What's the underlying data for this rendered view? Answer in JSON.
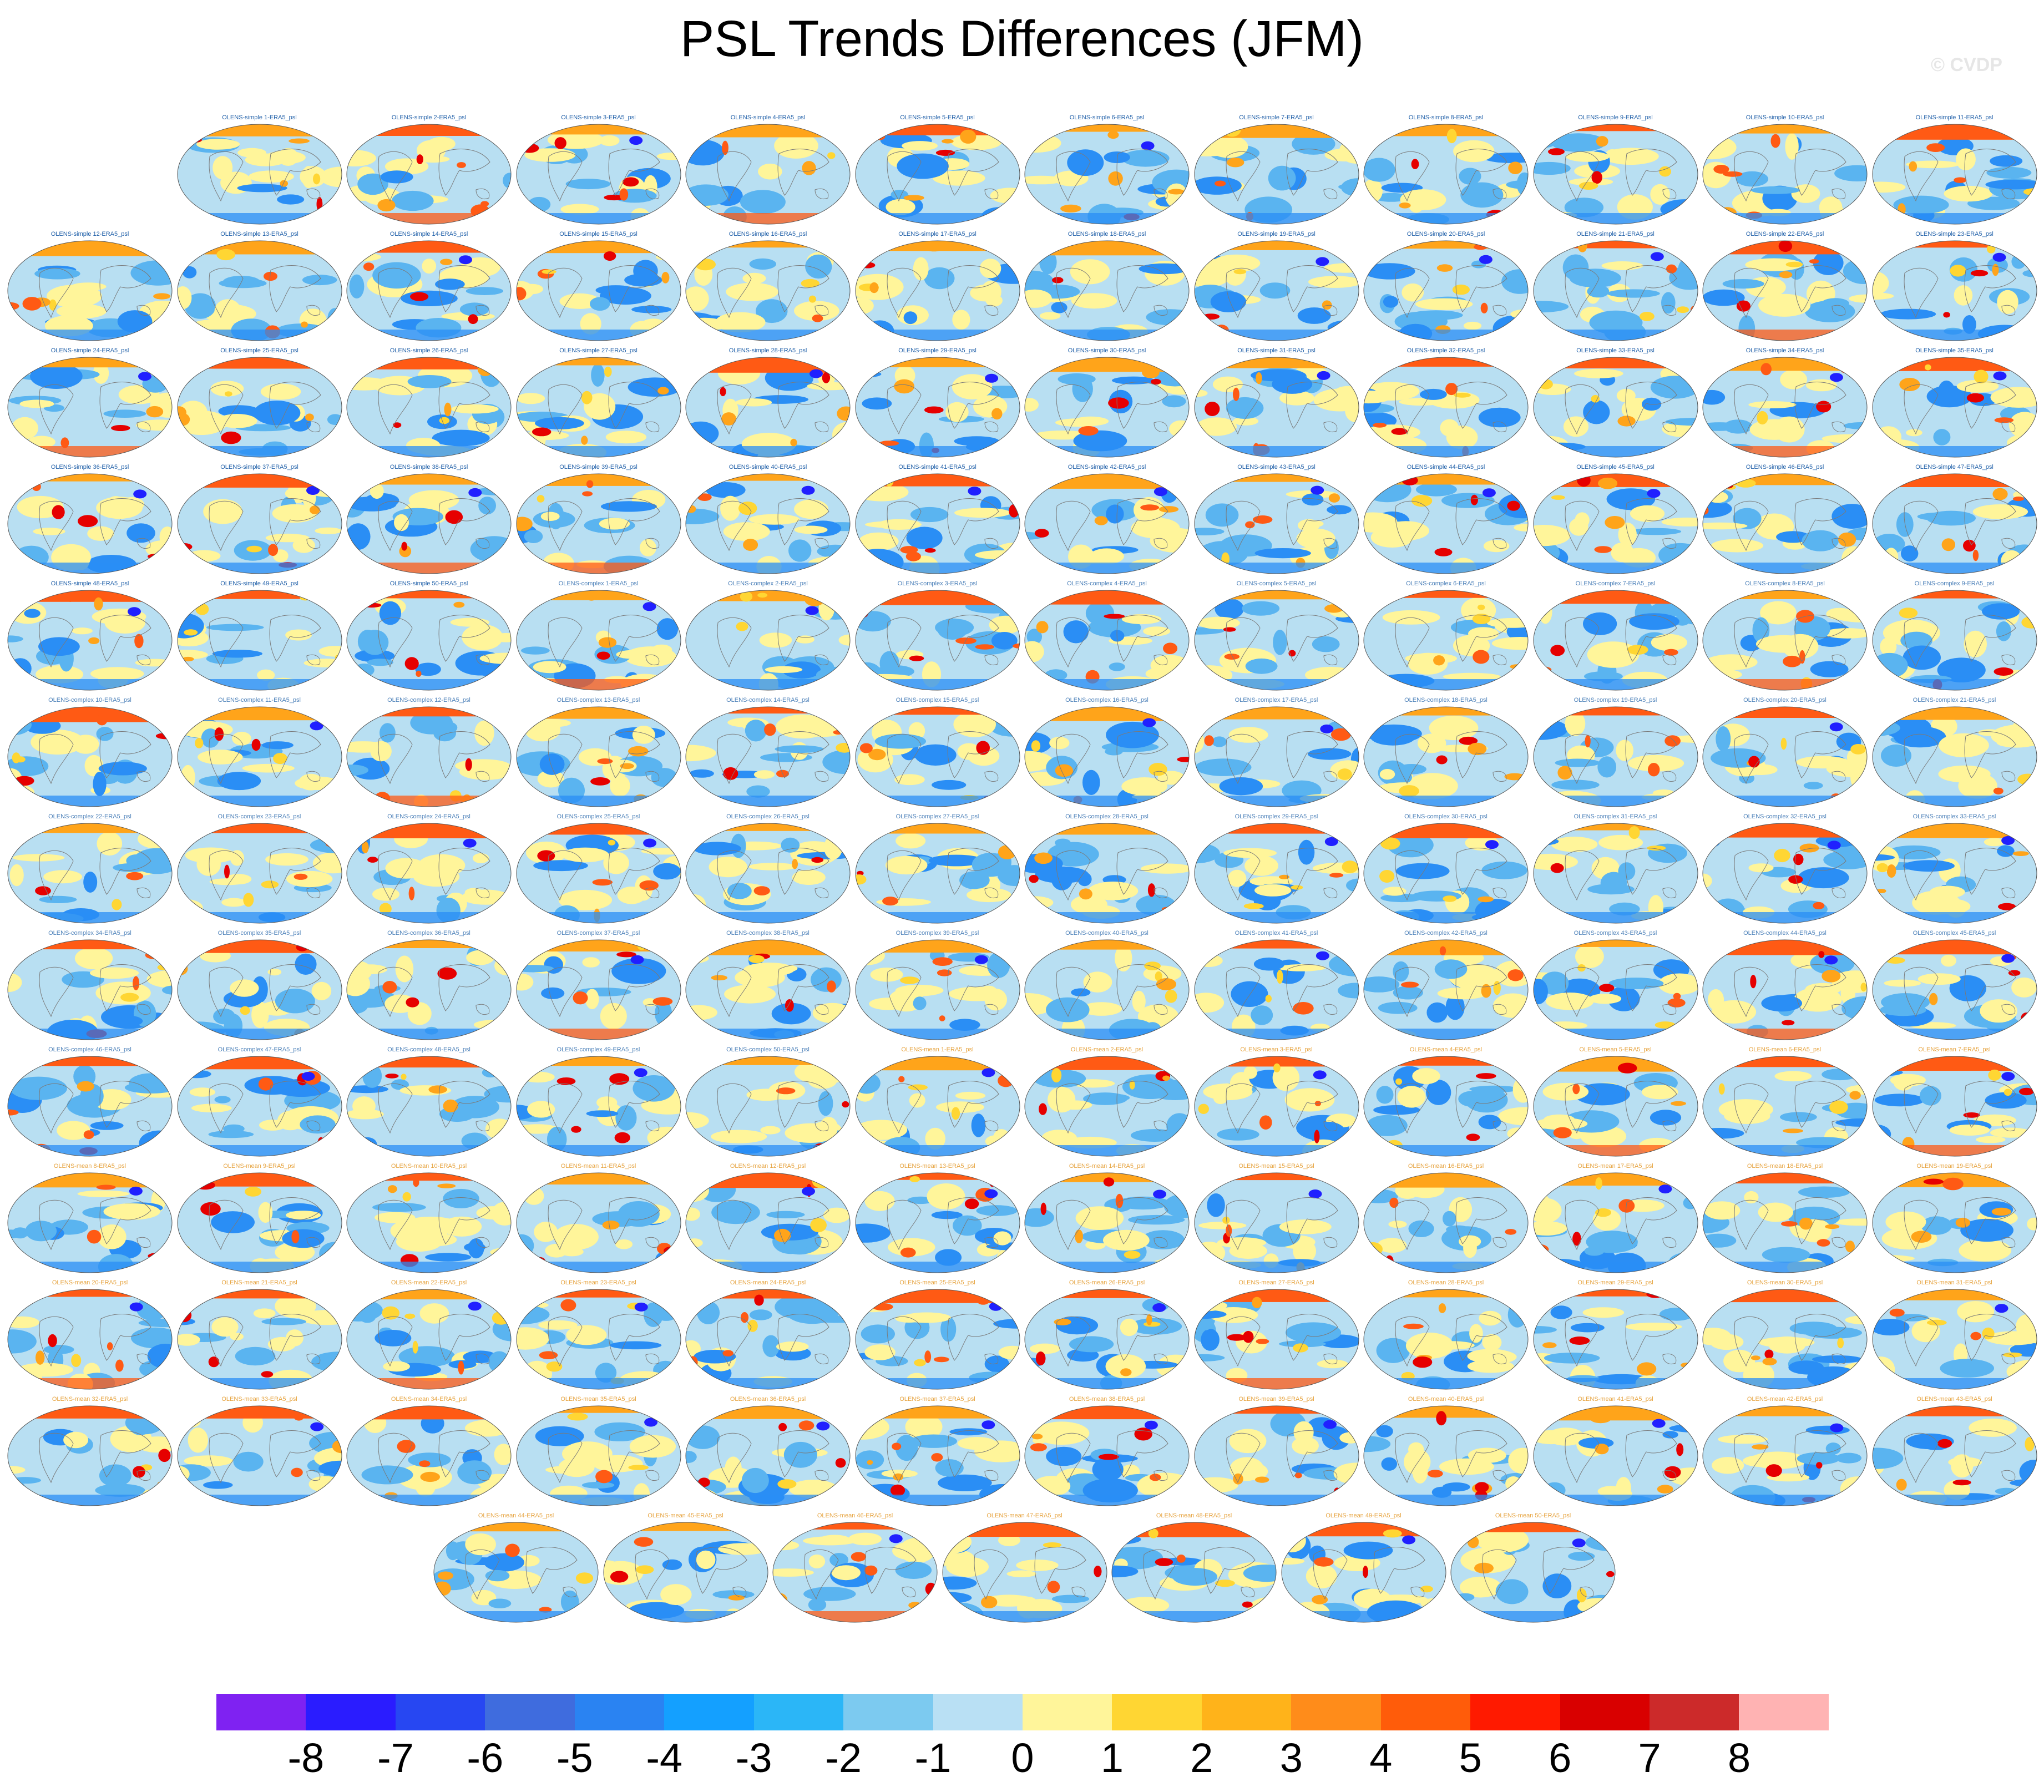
{
  "title": "PSL Trends Differences (JFM)",
  "watermark": "© CVDP",
  "panel_caption_colors": {
    "OLENS-simple": "#1f5fa8",
    "OLENS-complex": "#4a7fb8",
    "OLENS-mean": "#e6a23c"
  },
  "panels": [
    {
      "group": "OLENS-simple",
      "n": 1,
      "label": "OLENS-simple 1-ERA5_psl"
    },
    {
      "group": "OLENS-simple",
      "n": 2,
      "label": "OLENS-simple 2-ERA5_psl"
    },
    {
      "group": "OLENS-simple",
      "n": 3,
      "label": "OLENS-simple 3-ERA5_psl"
    },
    {
      "group": "OLENS-simple",
      "n": 4,
      "label": "OLENS-simple 4-ERA5_psl"
    },
    {
      "group": "OLENS-simple",
      "n": 5,
      "label": "OLENS-simple 5-ERA5_psl"
    },
    {
      "group": "OLENS-simple",
      "n": 6,
      "label": "OLENS-simple 6-ERA5_psl"
    },
    {
      "group": "OLENS-simple",
      "n": 7,
      "label": "OLENS-simple 7-ERA5_psl"
    },
    {
      "group": "OLENS-simple",
      "n": 8,
      "label": "OLENS-simple 8-ERA5_psl"
    },
    {
      "group": "OLENS-simple",
      "n": 9,
      "label": "OLENS-simple 9-ERA5_psl"
    },
    {
      "group": "OLENS-simple",
      "n": 10,
      "label": "OLENS-simple 10-ERA5_psl"
    },
    {
      "group": "OLENS-simple",
      "n": 11,
      "label": "OLENS-simple 11-ERA5_psl"
    },
    {
      "group": "OLENS-simple",
      "n": 12,
      "label": "OLENS-simple 12-ERA5_psl"
    },
    {
      "group": "OLENS-simple",
      "n": 13,
      "label": "OLENS-simple 13-ERA5_psl"
    },
    {
      "group": "OLENS-simple",
      "n": 14,
      "label": "OLENS-simple 14-ERA5_psl"
    },
    {
      "group": "OLENS-simple",
      "n": 15,
      "label": "OLENS-simple 15-ERA5_psl"
    },
    {
      "group": "OLENS-simple",
      "n": 16,
      "label": "OLENS-simple 16-ERA5_psl"
    },
    {
      "group": "OLENS-simple",
      "n": 17,
      "label": "OLENS-simple 17-ERA5_psl"
    },
    {
      "group": "OLENS-simple",
      "n": 18,
      "label": "OLENS-simple 18-ERA5_psl"
    },
    {
      "group": "OLENS-simple",
      "n": 19,
      "label": "OLENS-simple 19-ERA5_psl"
    },
    {
      "group": "OLENS-simple",
      "n": 20,
      "label": "OLENS-simple 20-ERA5_psl"
    },
    {
      "group": "OLENS-simple",
      "n": 21,
      "label": "OLENS-simple 21-ERA5_psl"
    },
    {
      "group": "OLENS-simple",
      "n": 22,
      "label": "OLENS-simple 22-ERA5_psl"
    },
    {
      "group": "OLENS-simple",
      "n": 23,
      "label": "OLENS-simple 23-ERA5_psl"
    },
    {
      "group": "OLENS-simple",
      "n": 24,
      "label": "OLENS-simple 24-ERA5_psl"
    },
    {
      "group": "OLENS-simple",
      "n": 25,
      "label": "OLENS-simple 25-ERA5_psl"
    },
    {
      "group": "OLENS-simple",
      "n": 26,
      "label": "OLENS-simple 26-ERA5_psl"
    },
    {
      "group": "OLENS-simple",
      "n": 27,
      "label": "OLENS-simple 27-ERA5_psl"
    },
    {
      "group": "OLENS-simple",
      "n": 28,
      "label": "OLENS-simple 28-ERA5_psl"
    },
    {
      "group": "OLENS-simple",
      "n": 29,
      "label": "OLENS-simple 29-ERA5_psl"
    },
    {
      "group": "OLENS-simple",
      "n": 30,
      "label": "OLENS-simple 30-ERA5_psl"
    },
    {
      "group": "OLENS-simple",
      "n": 31,
      "label": "OLENS-simple 31-ERA5_psl"
    },
    {
      "group": "OLENS-simple",
      "n": 32,
      "label": "OLENS-simple 32-ERA5_psl"
    },
    {
      "group": "OLENS-simple",
      "n": 33,
      "label": "OLENS-simple 33-ERA5_psl"
    },
    {
      "group": "OLENS-simple",
      "n": 34,
      "label": "OLENS-simple 34-ERA5_psl"
    },
    {
      "group": "OLENS-simple",
      "n": 35,
      "label": "OLENS-simple 35-ERA5_psl"
    },
    {
      "group": "OLENS-simple",
      "n": 36,
      "label": "OLENS-simple 36-ERA5_psl"
    },
    {
      "group": "OLENS-simple",
      "n": 37,
      "label": "OLENS-simple 37-ERA5_psl"
    },
    {
      "group": "OLENS-simple",
      "n": 38,
      "label": "OLENS-simple 38-ERA5_psl"
    },
    {
      "group": "OLENS-simple",
      "n": 39,
      "label": "OLENS-simple 39-ERA5_psl"
    },
    {
      "group": "OLENS-simple",
      "n": 40,
      "label": "OLENS-simple 40-ERA5_psl"
    },
    {
      "group": "OLENS-simple",
      "n": 41,
      "label": "OLENS-simple 41-ERA5_psl"
    },
    {
      "group": "OLENS-simple",
      "n": 42,
      "label": "OLENS-simple 42-ERA5_psl"
    },
    {
      "group": "OLENS-simple",
      "n": 43,
      "label": "OLENS-simple 43-ERA5_psl"
    },
    {
      "group": "OLENS-simple",
      "n": 44,
      "label": "OLENS-simple 44-ERA5_psl"
    },
    {
      "group": "OLENS-simple",
      "n": 45,
      "label": "OLENS-simple 45-ERA5_psl"
    },
    {
      "group": "OLENS-simple",
      "n": 46,
      "label": "OLENS-simple 46-ERA5_psl"
    },
    {
      "group": "OLENS-simple",
      "n": 47,
      "label": "OLENS-simple 47-ERA5_psl"
    },
    {
      "group": "OLENS-simple",
      "n": 48,
      "label": "OLENS-simple 48-ERA5_psl"
    },
    {
      "group": "OLENS-simple",
      "n": 49,
      "label": "OLENS-simple 49-ERA5_psl"
    },
    {
      "group": "OLENS-simple",
      "n": 50,
      "label": "OLENS-simple 50-ERA5_psl"
    },
    {
      "group": "OLENS-complex",
      "n": 1,
      "label": "OLENS-complex 1-ERA5_psl"
    },
    {
      "group": "OLENS-complex",
      "n": 2,
      "label": "OLENS-complex 2-ERA5_psl"
    },
    {
      "group": "OLENS-complex",
      "n": 3,
      "label": "OLENS-complex 3-ERA5_psl"
    },
    {
      "group": "OLENS-complex",
      "n": 4,
      "label": "OLENS-complex 4-ERA5_psl"
    },
    {
      "group": "OLENS-complex",
      "n": 5,
      "label": "OLENS-complex 5-ERA5_psl"
    },
    {
      "group": "OLENS-complex",
      "n": 6,
      "label": "OLENS-complex 6-ERA5_psl"
    },
    {
      "group": "OLENS-complex",
      "n": 7,
      "label": "OLENS-complex 7-ERA5_psl"
    },
    {
      "group": "OLENS-complex",
      "n": 8,
      "label": "OLENS-complex 8-ERA5_psl"
    },
    {
      "group": "OLENS-complex",
      "n": 9,
      "label": "OLENS-complex 9-ERA5_psl"
    },
    {
      "group": "OLENS-complex",
      "n": 10,
      "label": "OLENS-complex 10-ERA5_psl"
    },
    {
      "group": "OLENS-complex",
      "n": 11,
      "label": "OLENS-complex 11-ERA5_psl"
    },
    {
      "group": "OLENS-complex",
      "n": 12,
      "label": "OLENS-complex 12-ERA5_psl"
    },
    {
      "group": "OLENS-complex",
      "n": 13,
      "label": "OLENS-complex 13-ERA5_psl"
    },
    {
      "group": "OLENS-complex",
      "n": 14,
      "label": "OLENS-complex 14-ERA5_psl"
    },
    {
      "group": "OLENS-complex",
      "n": 15,
      "label": "OLENS-complex 15-ERA5_psl"
    },
    {
      "group": "OLENS-complex",
      "n": 16,
      "label": "OLENS-complex 16-ERA5_psl"
    },
    {
      "group": "OLENS-complex",
      "n": 17,
      "label": "OLENS-complex 17-ERA5_psl"
    },
    {
      "group": "OLENS-complex",
      "n": 18,
      "label": "OLENS-complex 18-ERA5_psl"
    },
    {
      "group": "OLENS-complex",
      "n": 19,
      "label": "OLENS-complex 19-ERA5_psl"
    },
    {
      "group": "OLENS-complex",
      "n": 20,
      "label": "OLENS-complex 20-ERA5_psl"
    },
    {
      "group": "OLENS-complex",
      "n": 21,
      "label": "OLENS-complex 21-ERA5_psl"
    },
    {
      "group": "OLENS-complex",
      "n": 22,
      "label": "OLENS-complex 22-ERA5_psl"
    },
    {
      "group": "OLENS-complex",
      "n": 23,
      "label": "OLENS-complex 23-ERA5_psl"
    },
    {
      "group": "OLENS-complex",
      "n": 24,
      "label": "OLENS-complex 24-ERA5_psl"
    },
    {
      "group": "OLENS-complex",
      "n": 25,
      "label": "OLENS-complex 25-ERA5_psl"
    },
    {
      "group": "OLENS-complex",
      "n": 26,
      "label": "OLENS-complex 26-ERA5_psl"
    },
    {
      "group": "OLENS-complex",
      "n": 27,
      "label": "OLENS-complex 27-ERA5_psl"
    },
    {
      "group": "OLENS-complex",
      "n": 28,
      "label": "OLENS-complex 28-ERA5_psl"
    },
    {
      "group": "OLENS-complex",
      "n": 29,
      "label": "OLENS-complex 29-ERA5_psl"
    },
    {
      "group": "OLENS-complex",
      "n": 30,
      "label": "OLENS-complex 30-ERA5_psl"
    },
    {
      "group": "OLENS-complex",
      "n": 31,
      "label": "OLENS-complex 31-ERA5_psl"
    },
    {
      "group": "OLENS-complex",
      "n": 32,
      "label": "OLENS-complex 32-ERA5_psl"
    },
    {
      "group": "OLENS-complex",
      "n": 33,
      "label": "OLENS-complex 33-ERA5_psl"
    },
    {
      "group": "OLENS-complex",
      "n": 34,
      "label": "OLENS-complex 34-ERA5_psl"
    },
    {
      "group": "OLENS-complex",
      "n": 35,
      "label": "OLENS-complex 35-ERA5_psl"
    },
    {
      "group": "OLENS-complex",
      "n": 36,
      "label": "OLENS-complex 36-ERA5_psl"
    },
    {
      "group": "OLENS-complex",
      "n": 37,
      "label": "OLENS-complex 37-ERA5_psl"
    },
    {
      "group": "OLENS-complex",
      "n": 38,
      "label": "OLENS-complex 38-ERA5_psl"
    },
    {
      "group": "OLENS-complex",
      "n": 39,
      "label": "OLENS-complex 39-ERA5_psl"
    },
    {
      "group": "OLENS-complex",
      "n": 40,
      "label": "OLENS-complex 40-ERA5_psl"
    },
    {
      "group": "OLENS-complex",
      "n": 41,
      "label": "OLENS-complex 41-ERA5_psl"
    },
    {
      "group": "OLENS-complex",
      "n": 42,
      "label": "OLENS-complex 42-ERA5_psl"
    },
    {
      "group": "OLENS-complex",
      "n": 43,
      "label": "OLENS-complex 43-ERA5_psl"
    },
    {
      "group": "OLENS-complex",
      "n": 44,
      "label": "OLENS-complex 44-ERA5_psl"
    },
    {
      "group": "OLENS-complex",
      "n": 45,
      "label": "OLENS-complex 45-ERA5_psl"
    },
    {
      "group": "OLENS-complex",
      "n": 46,
      "label": "OLENS-complex 46-ERA5_psl"
    },
    {
      "group": "OLENS-complex",
      "n": 47,
      "label": "OLENS-complex 47-ERA5_psl"
    },
    {
      "group": "OLENS-complex",
      "n": 48,
      "label": "OLENS-complex 48-ERA5_psl"
    },
    {
      "group": "OLENS-complex",
      "n": 49,
      "label": "OLENS-complex 49-ERA5_psl"
    },
    {
      "group": "OLENS-complex",
      "n": 50,
      "label": "OLENS-complex 50-ERA5_psl"
    },
    {
      "group": "OLENS-mean",
      "n": 1,
      "label": "OLENS-mean 1-ERA5_psl"
    },
    {
      "group": "OLENS-mean",
      "n": 2,
      "label": "OLENS-mean 2-ERA5_psl"
    },
    {
      "group": "OLENS-mean",
      "n": 3,
      "label": "OLENS-mean 3-ERA5_psl"
    },
    {
      "group": "OLENS-mean",
      "n": 4,
      "label": "OLENS-mean 4-ERA5_psl"
    },
    {
      "group": "OLENS-mean",
      "n": 5,
      "label": "OLENS-mean 5-ERA5_psl"
    },
    {
      "group": "OLENS-mean",
      "n": 6,
      "label": "OLENS-mean 6-ERA5_psl"
    },
    {
      "group": "OLENS-mean",
      "n": 7,
      "label": "OLENS-mean 7-ERA5_psl"
    },
    {
      "group": "OLENS-mean",
      "n": 8,
      "label": "OLENS-mean 8-ERA5_psl"
    },
    {
      "group": "OLENS-mean",
      "n": 9,
      "label": "OLENS-mean 9-ERA5_psl"
    },
    {
      "group": "OLENS-mean",
      "n": 10,
      "label": "OLENS-mean 10-ERA5_psl"
    },
    {
      "group": "OLENS-mean",
      "n": 11,
      "label": "OLENS-mean 11-ERA5_psl"
    },
    {
      "group": "OLENS-mean",
      "n": 12,
      "label": "OLENS-mean 12-ERA5_psl"
    },
    {
      "group": "OLENS-mean",
      "n": 13,
      "label": "OLENS-mean 13-ERA5_psl"
    },
    {
      "group": "OLENS-mean",
      "n": 14,
      "label": "OLENS-mean 14-ERA5_psl"
    },
    {
      "group": "OLENS-mean",
      "n": 15,
      "label": "OLENS-mean 15-ERA5_psl"
    },
    {
      "group": "OLENS-mean",
      "n": 16,
      "label": "OLENS-mean 16-ERA5_psl"
    },
    {
      "group": "OLENS-mean",
      "n": 17,
      "label": "OLENS-mean 17-ERA5_psl"
    },
    {
      "group": "OLENS-mean",
      "n": 18,
      "label": "OLENS-mean 18-ERA5_psl"
    },
    {
      "group": "OLENS-mean",
      "n": 19,
      "label": "OLENS-mean 19-ERA5_psl"
    },
    {
      "group": "OLENS-mean",
      "n": 20,
      "label": "OLENS-mean 20-ERA5_psl"
    },
    {
      "group": "OLENS-mean",
      "n": 21,
      "label": "OLENS-mean 21-ERA5_psl"
    },
    {
      "group": "OLENS-mean",
      "n": 22,
      "label": "OLENS-mean 22-ERA5_psl"
    },
    {
      "group": "OLENS-mean",
      "n": 23,
      "label": "OLENS-mean 23-ERA5_psl"
    },
    {
      "group": "OLENS-mean",
      "n": 24,
      "label": "OLENS-mean 24-ERA5_psl"
    },
    {
      "group": "OLENS-mean",
      "n": 25,
      "label": "OLENS-mean 25-ERA5_psl"
    },
    {
      "group": "OLENS-mean",
      "n": 26,
      "label": "OLENS-mean 26-ERA5_psl"
    },
    {
      "group": "OLENS-mean",
      "n": 27,
      "label": "OLENS-mean 27-ERA5_psl"
    },
    {
      "group": "OLENS-mean",
      "n": 28,
      "label": "OLENS-mean 28-ERA5_psl"
    },
    {
      "group": "OLENS-mean",
      "n": 29,
      "label": "OLENS-mean 29-ERA5_psl"
    },
    {
      "group": "OLENS-mean",
      "n": 30,
      "label": "OLENS-mean 30-ERA5_psl"
    },
    {
      "group": "OLENS-mean",
      "n": 31,
      "label": "OLENS-mean 31-ERA5_psl"
    },
    {
      "group": "OLENS-mean",
      "n": 32,
      "label": "OLENS-mean 32-ERA5_psl"
    },
    {
      "group": "OLENS-mean",
      "n": 33,
      "label": "OLENS-mean 33-ERA5_psl"
    },
    {
      "group": "OLENS-mean",
      "n": 34,
      "label": "OLENS-mean 34-ERA5_psl"
    },
    {
      "group": "OLENS-mean",
      "n": 35,
      "label": "OLENS-mean 35-ERA5_psl"
    },
    {
      "group": "OLENS-mean",
      "n": 36,
      "label": "OLENS-mean 36-ERA5_psl"
    },
    {
      "group": "OLENS-mean",
      "n": 37,
      "label": "OLENS-mean 37-ERA5_psl"
    },
    {
      "group": "OLENS-mean",
      "n": 38,
      "label": "OLENS-mean 38-ERA5_psl"
    },
    {
      "group": "OLENS-mean",
      "n": 39,
      "label": "OLENS-mean 39-ERA5_psl"
    },
    {
      "group": "OLENS-mean",
      "n": 40,
      "label": "OLENS-mean 40-ERA5_psl"
    },
    {
      "group": "OLENS-mean",
      "n": 41,
      "label": "OLENS-mean 41-ERA5_psl"
    },
    {
      "group": "OLENS-mean",
      "n": 42,
      "label": "OLENS-mean 42-ERA5_psl"
    },
    {
      "group": "OLENS-mean",
      "n": 43,
      "label": "OLENS-mean 43-ERA5_psl"
    },
    {
      "group": "OLENS-mean",
      "n": 44,
      "label": "OLENS-mean 44-ERA5_psl"
    },
    {
      "group": "OLENS-mean",
      "n": 45,
      "label": "OLENS-mean 45-ERA5_psl"
    },
    {
      "group": "OLENS-mean",
      "n": 46,
      "label": "OLENS-mean 46-ERA5_psl"
    },
    {
      "group": "OLENS-mean",
      "n": 47,
      "label": "OLENS-mean 47-ERA5_psl"
    },
    {
      "group": "OLENS-mean",
      "n": 48,
      "label": "OLENS-mean 48-ERA5_psl"
    },
    {
      "group": "OLENS-mean",
      "n": 49,
      "label": "OLENS-mean 49-ERA5_psl"
    },
    {
      "group": "OLENS-mean",
      "n": 50,
      "label": "OLENS-mean 50-ERA5_psl"
    }
  ],
  "map_fill": {
    "ocean_base": "#b8dff2",
    "land_outline": "#7a7a7a",
    "anomaly_palette": [
      "#3b6fe0",
      "#2a8ef5",
      "#5ab4f0",
      "#fff59a",
      "#ffd633",
      "#ffa41a",
      "#ff5a14",
      "#e60000",
      "#ffb3b3",
      "#2020ff"
    ]
  },
  "colorbar": {
    "colors": [
      "#7f22f2",
      "#2a1cff",
      "#2747f2",
      "#3f6cde",
      "#2a83f2",
      "#14a0ff",
      "#2bb6f7",
      "#7ccaf0",
      "#b9e0f4",
      "#fff59a",
      "#ffd633",
      "#ffb31a",
      "#ff8c1a",
      "#ff5c0a",
      "#ff1a00",
      "#d90000",
      "#cc2a2a",
      "#ffb3b3"
    ],
    "labels": [
      "-8",
      "-7",
      "-6",
      "-5",
      "-4",
      "-3",
      "-2",
      "-1",
      "0",
      "1",
      "2",
      "3",
      "4",
      "5",
      "6",
      "7",
      "8"
    ]
  }
}
